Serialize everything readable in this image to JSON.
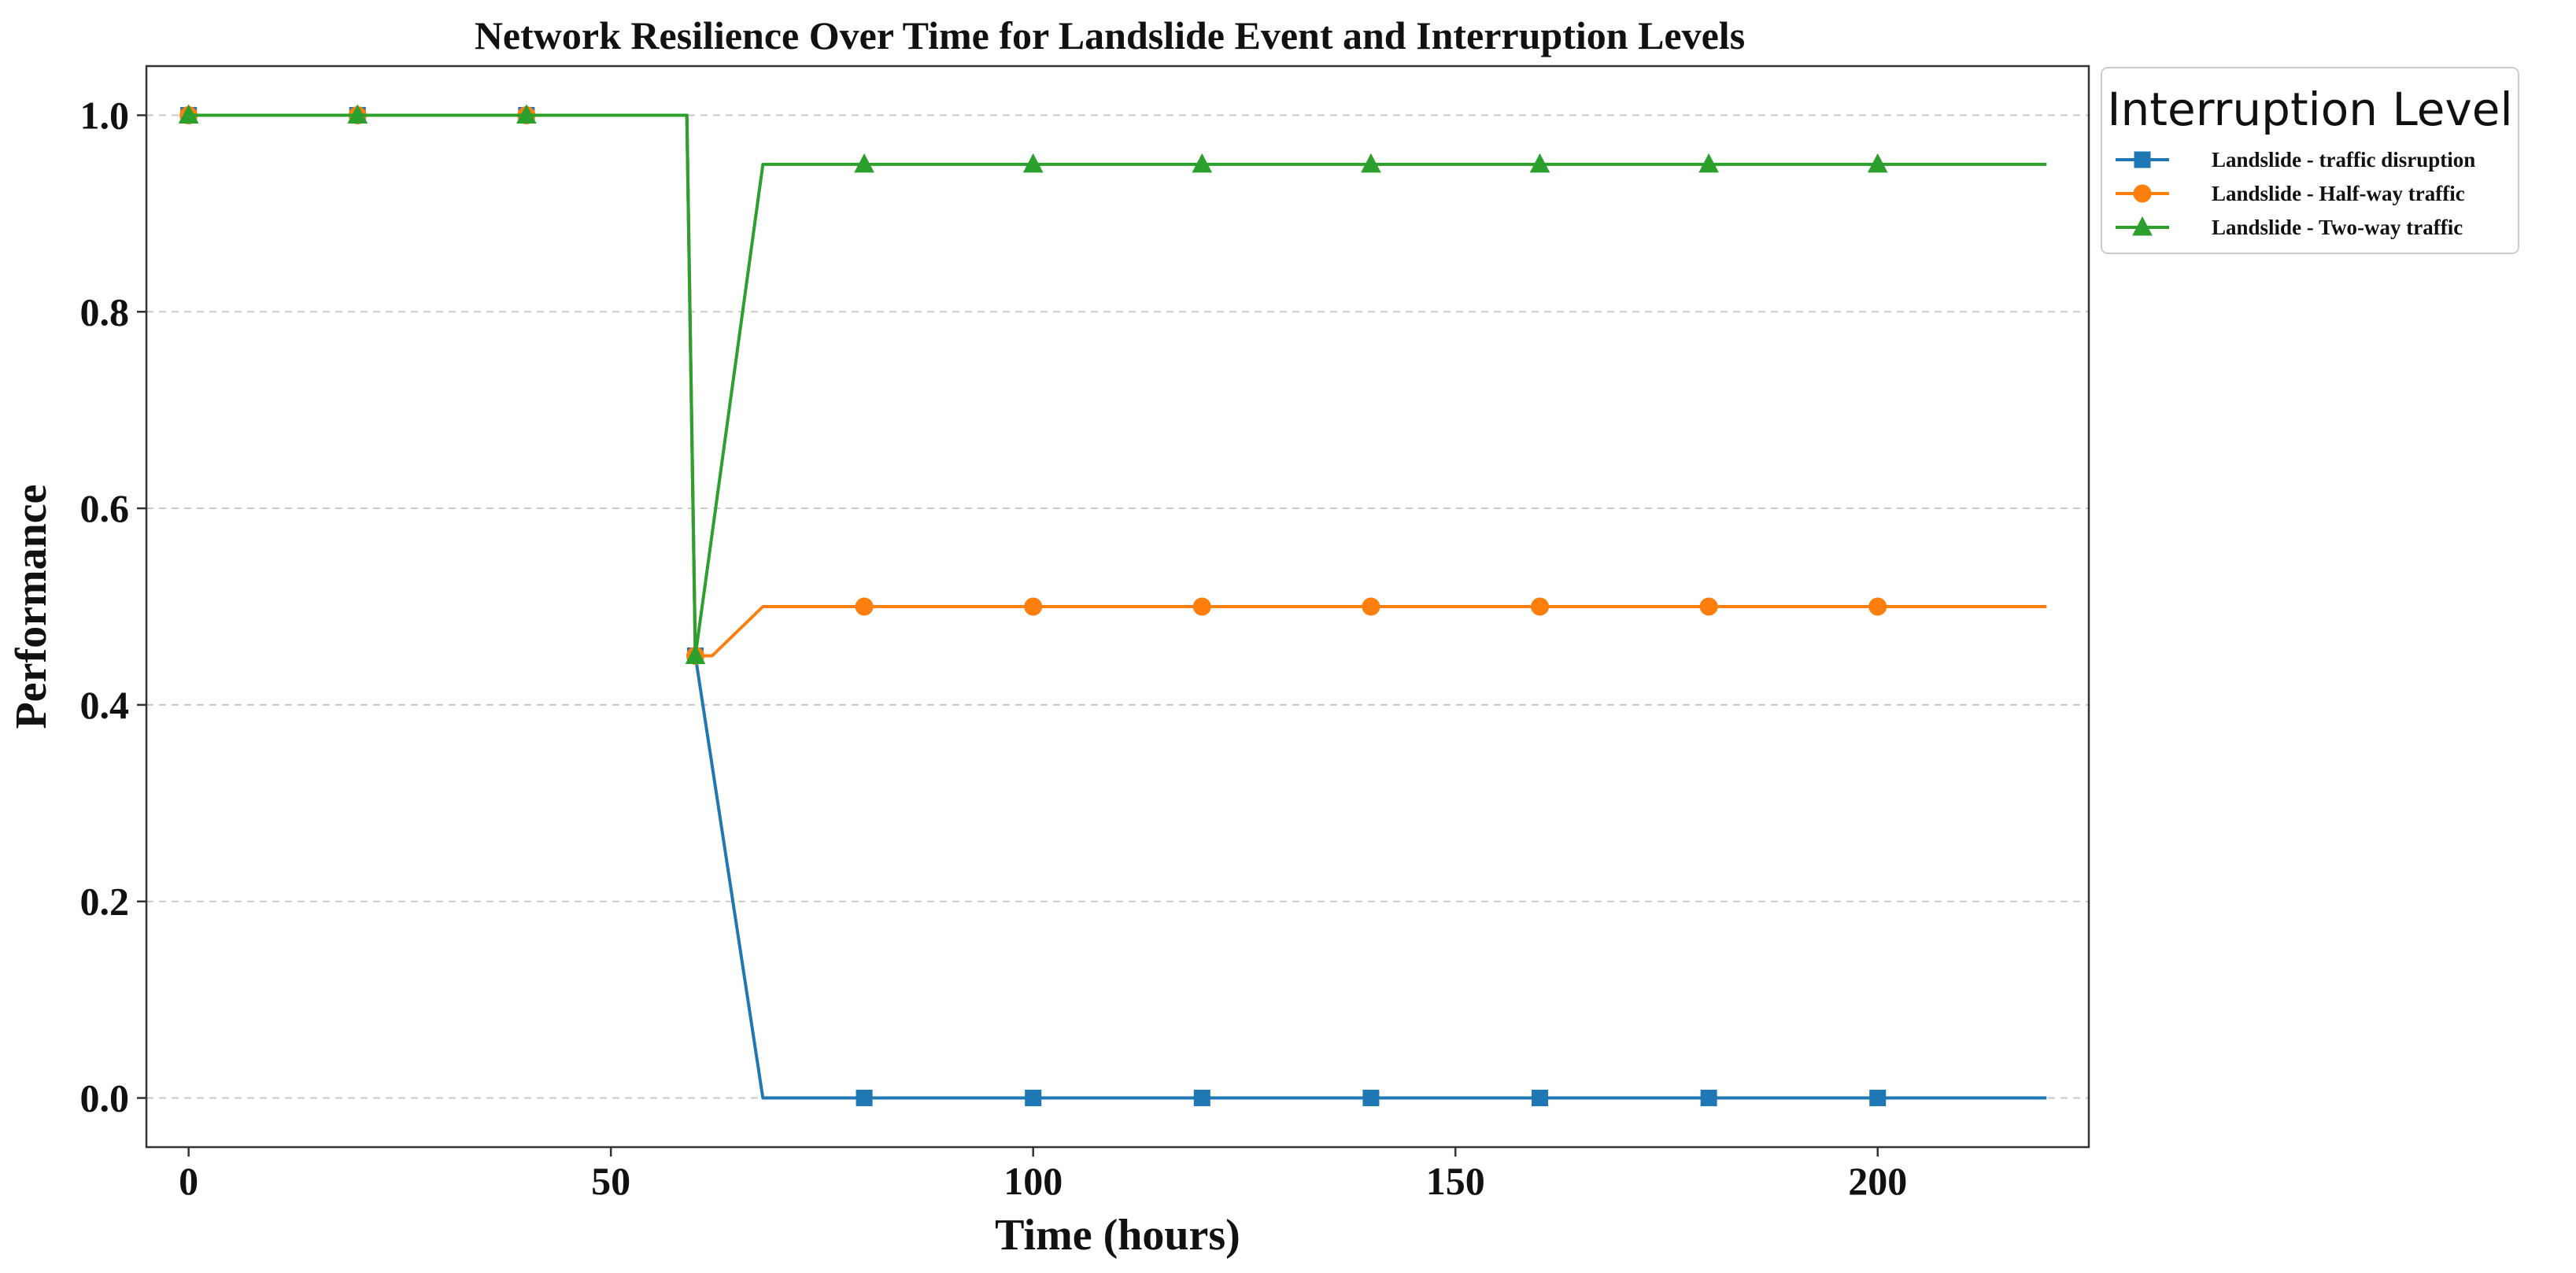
{
  "chart_data": {
    "type": "line",
    "title": "Network Resilience Over Time for Landslide Event and Interruption Levels",
    "xlabel": "Time (hours)",
    "ylabel": "Performance",
    "xlim": [
      -5,
      225
    ],
    "ylim": [
      -0.05,
      1.05
    ],
    "xticks": [
      0,
      50,
      100,
      150,
      200
    ],
    "xtick_labels": [
      "0",
      "50",
      "100",
      "150",
      "200"
    ],
    "yticks": [
      0.0,
      0.2,
      0.4,
      0.6,
      0.8,
      1.0
    ],
    "ytick_labels": [
      "0.0",
      "0.2",
      "0.4",
      "0.6",
      "0.8",
      "1.0"
    ],
    "grid": "horizontal-dashed",
    "legend": {
      "title": "Interruption Level",
      "placement": "outside-top-right"
    },
    "series": [
      {
        "name": "Landslide - traffic disruption",
        "color": "#1f77b4",
        "marker": "square",
        "x": [
          0,
          59,
          60,
          68,
          220
        ],
        "y": [
          1.0,
          1.0,
          0.45,
          0.0,
          0.0
        ],
        "marker_x": [
          0,
          20,
          40,
          60,
          80,
          100,
          120,
          140,
          160,
          180,
          200
        ],
        "marker_y": [
          1.0,
          1.0,
          1.0,
          0.45,
          0.0,
          0.0,
          0.0,
          0.0,
          0.0,
          0.0,
          0.0
        ]
      },
      {
        "name": "Landslide - Half-way traffic",
        "color": "#ff7f0e",
        "marker": "circle",
        "x": [
          0,
          59,
          60,
          62,
          68,
          220
        ],
        "y": [
          1.0,
          1.0,
          0.45,
          0.45,
          0.5,
          0.5
        ],
        "marker_x": [
          0,
          20,
          40,
          60,
          80,
          100,
          120,
          140,
          160,
          180,
          200
        ],
        "marker_y": [
          1.0,
          1.0,
          1.0,
          0.45,
          0.5,
          0.5,
          0.5,
          0.5,
          0.5,
          0.5,
          0.5
        ]
      },
      {
        "name": "Landslide - Two-way traffic",
        "color": "#2ca02c",
        "marker": "triangle",
        "x": [
          0,
          59,
          60,
          68,
          220
        ],
        "y": [
          1.0,
          1.0,
          0.45,
          0.95,
          0.95
        ],
        "marker_x": [
          0,
          20,
          40,
          60,
          80,
          100,
          120,
          140,
          160,
          180,
          200
        ],
        "marker_y": [
          1.0,
          1.0,
          1.0,
          0.45,
          0.95,
          0.95,
          0.95,
          0.95,
          0.95,
          0.95,
          0.95
        ]
      }
    ]
  }
}
